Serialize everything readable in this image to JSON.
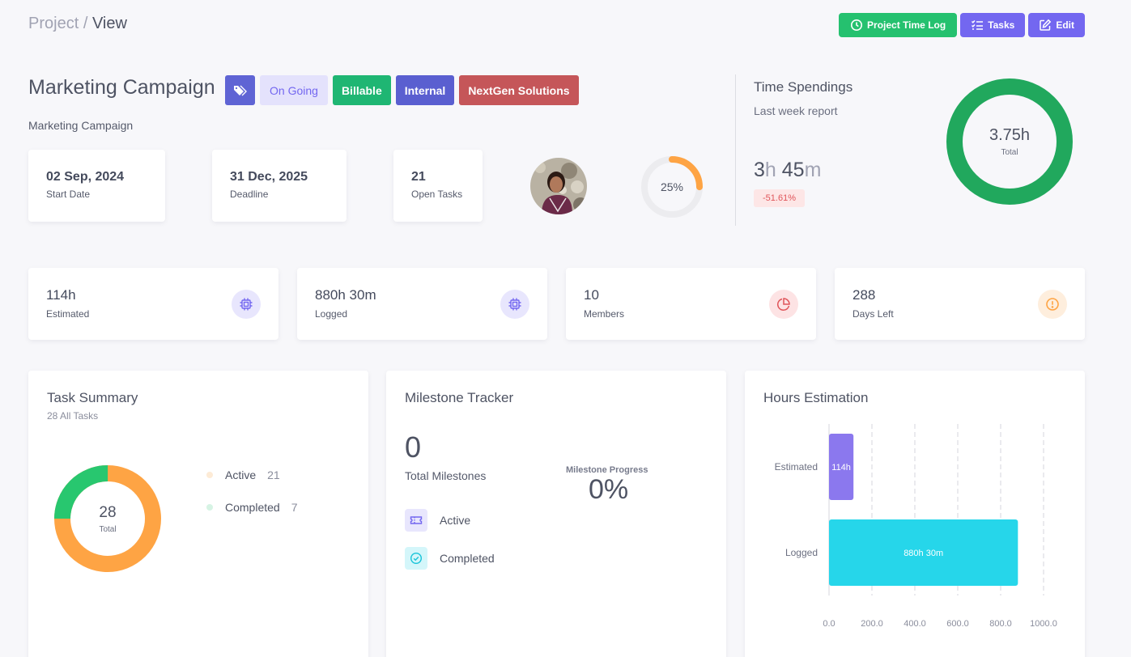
{
  "breadcrumb": {
    "parent": "Project",
    "separator": "/",
    "current": "View"
  },
  "actions": {
    "time_log": "Project Time Log",
    "tasks": "Tasks",
    "edit": "Edit"
  },
  "project": {
    "title": "Marketing Campaign",
    "description": "Marketing Campaign",
    "tags": {
      "status": "On Going",
      "billing": "Billable",
      "type": "Internal",
      "client": "NextGen Solutions"
    }
  },
  "info_cards": {
    "start": {
      "value": "02 Sep, 2024",
      "label": "Start Date"
    },
    "deadline": {
      "value": "31 Dec, 2025",
      "label": "Deadline"
    },
    "open_tasks": {
      "value": "21",
      "label": "Open Tasks"
    }
  },
  "progress": {
    "label": "25%",
    "fraction": 0.25
  },
  "time_spendings": {
    "title": "Time Spendings",
    "subtitle": "Last week report",
    "hours": "3",
    "hours_unit": "h",
    "minutes": "45",
    "minutes_unit": "m",
    "change": "-51.61%",
    "total_value": "3.75h",
    "total_label": "Total"
  },
  "stats": {
    "estimated": {
      "value": "114h",
      "label": "Estimated"
    },
    "logged": {
      "value": "880h 30m",
      "label": "Logged"
    },
    "members": {
      "value": "10",
      "label": "Members"
    },
    "days_left": {
      "value": "288",
      "label": "Days Left"
    }
  },
  "task_summary": {
    "title": "Task Summary",
    "subtitle": "28 All Tasks",
    "total": "28",
    "total_label": "Total",
    "items": [
      {
        "label": "Active",
        "count": "21",
        "color": "#fea444"
      },
      {
        "label": "Completed",
        "count": "7",
        "color": "#28c76f"
      }
    ]
  },
  "milestones": {
    "title": "Milestone Tracker",
    "total": "0",
    "total_label": "Total Milestones",
    "progress_label": "Milestone Progress",
    "progress_value": "0%",
    "items": [
      {
        "label": "Active"
      },
      {
        "label": "Completed"
      }
    ]
  },
  "hours_estimation": {
    "title": "Hours Estimation",
    "chart_data": {
      "type": "bar",
      "orientation": "horizontal",
      "categories": [
        "Estimated",
        "Logged"
      ],
      "values": [
        114,
        880.5
      ],
      "data_labels": [
        "114h",
        "880h 30m"
      ],
      "colors": [
        "#8b78ee",
        "#26d6ea"
      ],
      "xlim": [
        0,
        1000
      ],
      "xticks": [
        "0.0",
        "200.0",
        "400.0",
        "600.0",
        "800.0",
        "1000.0"
      ],
      "grid": true
    }
  },
  "colors": {
    "primary": "#7367f0",
    "success": "#25c16f",
    "danger": "#e0555a",
    "warning": "#fea444",
    "info": "#26d6ea"
  }
}
